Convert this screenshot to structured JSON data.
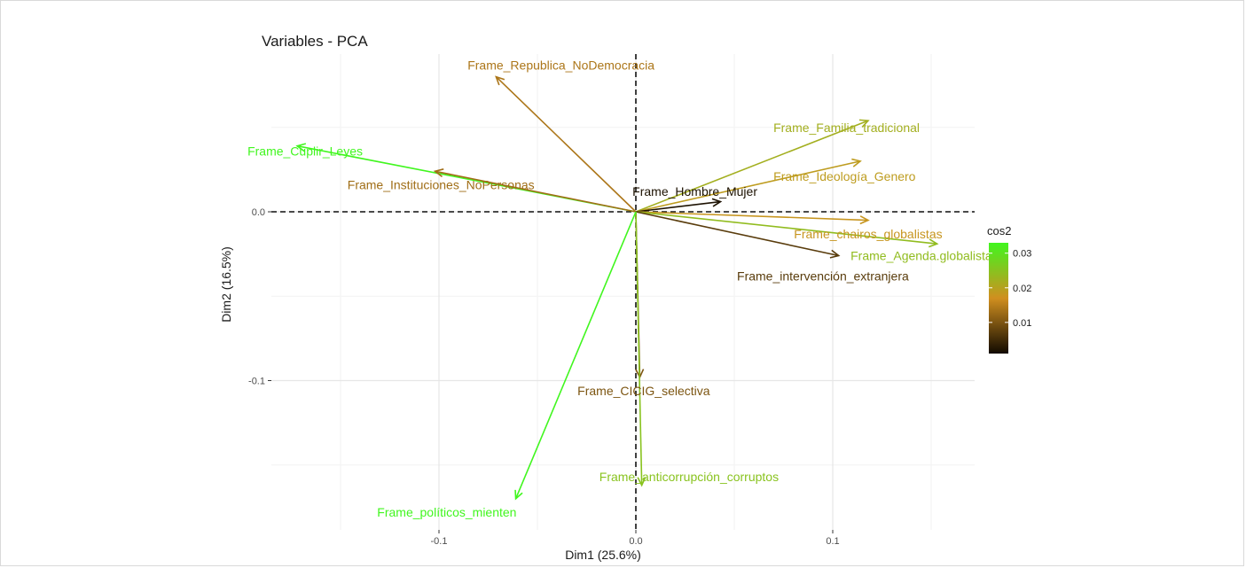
{
  "chart_data": {
    "type": "scatter",
    "subtype": "pca-variables-correlation",
    "title": "Variables - PCA",
    "xlabel": "Dim1 (25.6%)",
    "ylabel": "Dim2 (16.5%)",
    "xlim": [
      -0.16,
      0.17
    ],
    "ylim": [
      -0.175,
      0.088
    ],
    "x_ticks": [
      -0.1,
      0.0,
      0.1
    ],
    "x_tick_labels": [
      "-0.1",
      "0.0",
      "0.1"
    ],
    "y_ticks": [
      0.0,
      -0.1
    ],
    "y_tick_labels": [
      "0.0",
      "-0.1"
    ],
    "grid": true,
    "reference_lines": "dashed at x=0 and y=0",
    "legend": {
      "title": "cos2",
      "placement": "right",
      "min": 0.001,
      "max": 0.033,
      "ticks": [
        0.01,
        0.02,
        0.03
      ],
      "tick_labels": [
        "0.01",
        "0.02",
        "0.03"
      ],
      "colors": [
        "#110a00",
        "#d08f1f",
        "#41f61f"
      ]
    },
    "variables": [
      {
        "label": "Frame_Republica_NoDemocracia",
        "x": -0.071,
        "y": 0.08,
        "cos2": 0.014,
        "label_x": -0.038,
        "label_y": 0.087
      },
      {
        "label": "Frame_Familia_tradicional",
        "x": 0.118,
        "y": 0.054,
        "cos2": 0.022,
        "label_x": 0.107,
        "label_y": 0.05
      },
      {
        "label": "Frame_Cuplir_Leyes",
        "x": -0.172,
        "y": 0.039,
        "cos2": 0.033,
        "label_x": -0.168,
        "label_y": 0.036
      },
      {
        "label": "Frame_Ideología_Genero",
        "x": 0.114,
        "y": 0.03,
        "cos2": 0.019,
        "label_x": 0.106,
        "label_y": 0.021
      },
      {
        "label": "Frame_Instituciones_NoPersonas",
        "x": -0.102,
        "y": 0.024,
        "cos2": 0.013,
        "label_x": -0.099,
        "label_y": 0.016
      },
      {
        "label": "Frame_Hombre_Mujer",
        "x": 0.043,
        "y": 0.006,
        "cos2": 0.002,
        "label_x": 0.03,
        "label_y": 0.012
      },
      {
        "label": "Frame_chairos_globalistas",
        "x": 0.118,
        "y": -0.005,
        "cos2": 0.018,
        "label_x": 0.118,
        "label_y": -0.013
      },
      {
        "label": "Frame_Agenda.globalista",
        "x": 0.153,
        "y": -0.019,
        "cos2": 0.024,
        "label_x": 0.145,
        "label_y": -0.026
      },
      {
        "label": "Frame_intervención_extranjera",
        "x": 0.103,
        "y": -0.026,
        "cos2": 0.007,
        "label_x": 0.095,
        "label_y": -0.038
      },
      {
        "label": "Frame_CICIG_selectiva",
        "x": 0.002,
        "y": -0.098,
        "cos2": 0.01,
        "label_x": 0.004,
        "label_y": -0.106
      },
      {
        "label": "Frame_anticorrupción_corruptos",
        "x": 0.003,
        "y": -0.162,
        "cos2": 0.025,
        "label_x": 0.027,
        "label_y": -0.157
      },
      {
        "label": "Frame_políticos_mienten",
        "x": -0.061,
        "y": -0.17,
        "cos2": 0.033,
        "label_x": -0.096,
        "label_y": -0.178
      }
    ]
  }
}
